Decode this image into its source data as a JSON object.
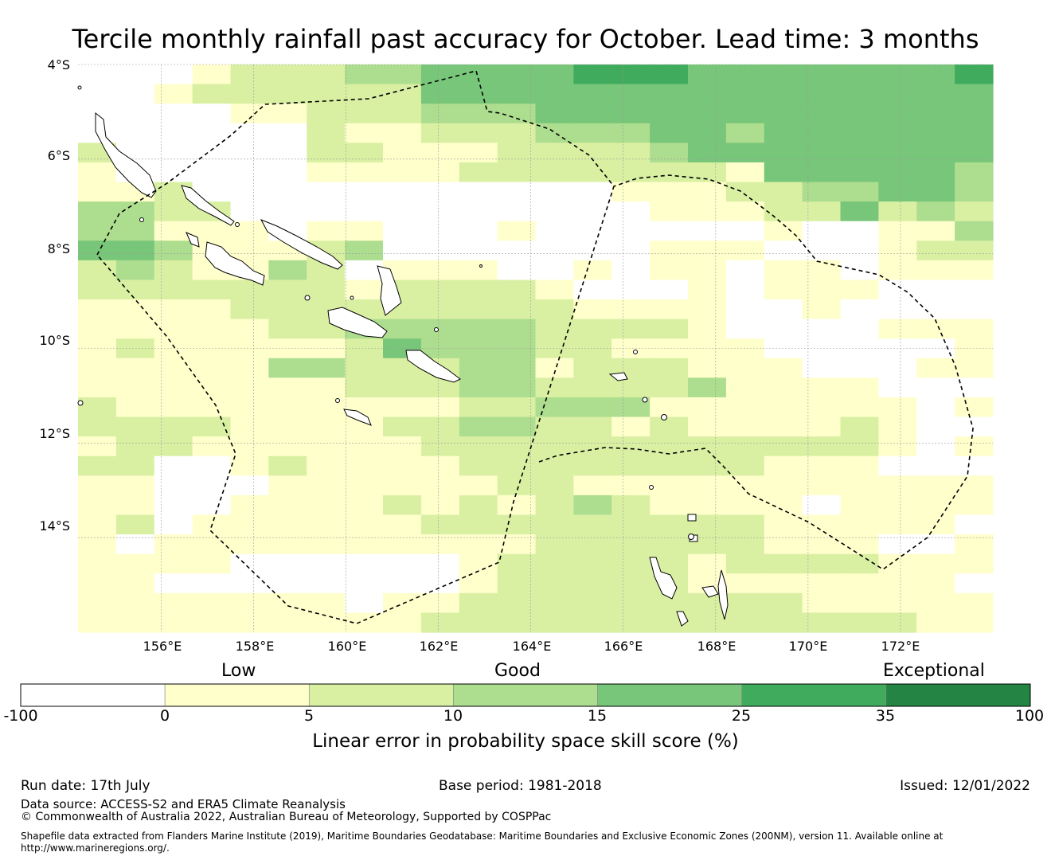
{
  "title": "Tercile monthly rainfall past accuracy for October. Lead time: 3 months",
  "map": {
    "lat_labels": [
      "4°S",
      "6°S",
      "8°S",
      "10°S",
      "12°S",
      "14°S"
    ],
    "lon_labels": [
      "156°E",
      "158°E",
      "160°E",
      "162°E",
      "164°E",
      "166°E",
      "168°E",
      "170°E",
      "172°E"
    ],
    "category_colors": [
      "#ffffff",
      "#ffffcc",
      "#d9f0a3",
      "#addd8e",
      "#78c679",
      "#41ab5d",
      "#238443"
    ],
    "boundary_color": "#000000"
  },
  "colorbar": {
    "words": [
      "Low",
      "Good",
      "Exceptional"
    ],
    "ticks": [
      "-100",
      "0",
      "5",
      "10",
      "15",
      "25",
      "35",
      "100"
    ],
    "colors": [
      "#ffffff",
      "#ffffcc",
      "#d9f0a3",
      "#addd8e",
      "#78c679",
      "#41ab5d",
      "#238443"
    ],
    "label": "Linear error in probability space skill score (%)"
  },
  "footer": {
    "run_date": "Run date: 17th July",
    "base_period": "Base period: 1981-2018",
    "issued": "Issued: 12/01/2022",
    "data_source": "Data source: ACCESS-S2 and ERA5 Climate Reanalysis",
    "copyright": "© Commonwealth of Australia 2022, Australian Bureau of Meteorology, Supported by COSPPac",
    "shapefile": "Shapefile data extracted from Flanders Marine Institute (2019), Maritime Boundaries Geodatabase: Maritime Boundaries and Exclusive Economic Zones (200NM), version 11. Available online at http://www.marineregions.org/."
  },
  "chart_data": {
    "type": "heatmap",
    "title": "Tercile monthly rainfall past accuracy for October. Lead time: 3 months",
    "xlabel": "",
    "ylabel": "",
    "value_label": "Linear error in probability space skill score (%)",
    "lon_range": [
      154.2,
      174.0
    ],
    "lat_range": [
      -16.0,
      -4.0
    ],
    "cell_size_deg": 0.83,
    "lon_ticks": [
      156,
      158,
      160,
      162,
      164,
      166,
      168,
      170,
      172
    ],
    "lat_ticks": [
      -4,
      -6,
      -8,
      -10,
      -12,
      -14
    ],
    "bins": [
      -100,
      0,
      5,
      10,
      15,
      25,
      35,
      100
    ],
    "category_index_note": "0:-100..0, 1:0..5, 2:5..10, 3:10..15, 4:15..25, 5:25..35, 6:35..100",
    "grid_rows_north_to_south": [
      "000122233444455544444445",
      "001222222444444444444444",
      "000011222333444444444444",
      "000000211222333443444444",
      "200000221112222344444444",
      "100000111122222221444443",
      "112000000000001112233443",
      "332200000000000111224232",
      "331110110001000000100113",
      "443111230000000111000122",
      "232113201110010110110111",
      "222222212222100010111000",
      "111122222222211110010000",
      "111112233333222210000111",
      "121111124333221111000001",
      "111113322233122211100011",
      "111111122233222231111000",
      "211111111122333111111101",
      "222211112233221211112100",
      "122111111222222222222101",
      "220012111122222222111000",
      "110001111112211111111111",
      "110011112121232111101111",
      "120111111222222222111110",
      "101111111111222222111001",
      "111100000012222212222111",
      "110000000012222211111110",
      "111111101122222222211111",
      "111111111222222222222211"
    ]
  }
}
